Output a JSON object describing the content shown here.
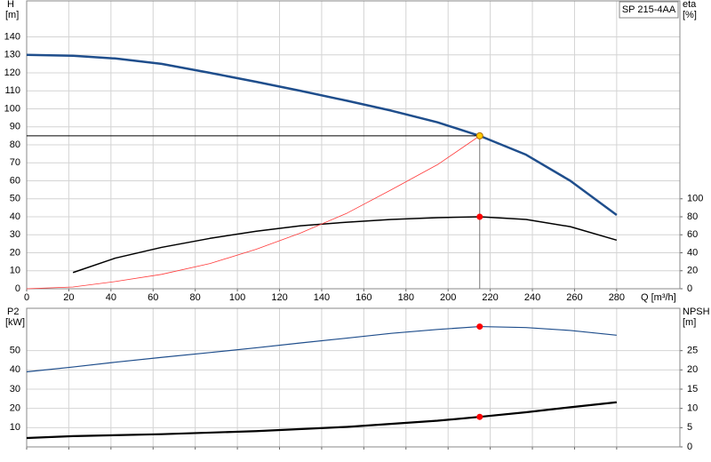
{
  "chart_data": [
    {
      "type": "line",
      "label": "SP 215-4AA",
      "ylabel": "H",
      "yunit": "[m]",
      "y2label": "eta",
      "y2unit": "[%]",
      "xlabel": "Q [m³/h]",
      "xlim": [
        0,
        310
      ],
      "xticks": [
        0,
        20,
        40,
        60,
        80,
        100,
        120,
        140,
        160,
        180,
        200,
        220,
        240,
        260,
        280
      ],
      "xtick_labels": true,
      "ylim": [
        0,
        160
      ],
      "yticks": [
        0,
        10,
        20,
        30,
        40,
        50,
        60,
        70,
        80,
        90,
        100,
        110,
        120,
        130,
        140
      ],
      "y2lim": [
        0,
        320
      ],
      "y2ticks": [
        0,
        20,
        40,
        60,
        80,
        100
      ],
      "grid": true,
      "series": [
        {
          "color": "#1f4e8c",
          "width": 2.5,
          "x": [
            0,
            22,
            42,
            64,
            87,
            109,
            130,
            152,
            173,
            195,
            215,
            237,
            258,
            280
          ],
          "values": [
            130,
            129.5,
            128,
            125,
            120,
            115,
            110,
            104.5,
            99,
            92.5,
            85,
            74.5,
            60,
            41
          ]
        },
        {
          "color": "#000000",
          "width": 1.5,
          "axis": "y2",
          "x": [
            22,
            42,
            64,
            87,
            109,
            130,
            152,
            173,
            195,
            215,
            237,
            258,
            280
          ],
          "values": [
            18,
            34,
            46,
            56,
            64,
            70,
            74,
            77,
            79,
            80,
            77,
            69,
            54
          ]
        },
        {
          "color": "#ff3b3b",
          "width": 0.8,
          "x": [
            0,
            22,
            42,
            64,
            87,
            109,
            130,
            152,
            173,
            195,
            215
          ],
          "values": [
            0,
            1,
            4,
            8,
            14,
            22,
            31,
            42,
            55,
            69,
            85
          ]
        }
      ],
      "markers": [
        {
          "x": 215,
          "value": 85,
          "color": "#ffcc00",
          "crosshair": true
        },
        {
          "x": 215,
          "value": 80,
          "color": "#ff0000",
          "axis": "y2"
        }
      ]
    },
    {
      "type": "line",
      "ylabel": "P2",
      "yunit": "[kW]",
      "y2label": "NPSH",
      "y2unit": "[m]",
      "xlim": [
        0,
        310
      ],
      "xticks": [
        0,
        20,
        40,
        60,
        80,
        100,
        120,
        140,
        160,
        180,
        200,
        220,
        240,
        260,
        280
      ],
      "xtick_labels": false,
      "ylim": [
        0,
        72
      ],
      "yticks": [
        10,
        20,
        30,
        40,
        50
      ],
      "y2lim": [
        0,
        36
      ],
      "y2ticks": [
        0,
        5,
        10,
        15,
        20,
        25
      ],
      "grid": true,
      "series": [
        {
          "color": "#1f4e8c",
          "width": 1.2,
          "x": [
            0,
            22,
            42,
            64,
            87,
            109,
            130,
            152,
            173,
            195,
            215,
            237,
            258,
            280
          ],
          "values": [
            39,
            41.5,
            44,
            46.5,
            49,
            51.5,
            54,
            56.5,
            59,
            61,
            62.5,
            62,
            60.5,
            58
          ]
        },
        {
          "color": "#000000",
          "width": 2.2,
          "axis": "y2",
          "x": [
            0,
            22,
            64,
            109,
            152,
            195,
            215,
            237,
            258,
            280
          ],
          "values": [
            2.3,
            2.8,
            3.3,
            4.1,
            5.2,
            6.8,
            7.8,
            9.0,
            10.3,
            11.6
          ]
        }
      ],
      "markers": [
        {
          "x": 215,
          "value": 62.5,
          "color": "#ff0000"
        },
        {
          "x": 215,
          "value": 7.8,
          "color": "#ff0000",
          "axis": "y2"
        }
      ]
    }
  ]
}
